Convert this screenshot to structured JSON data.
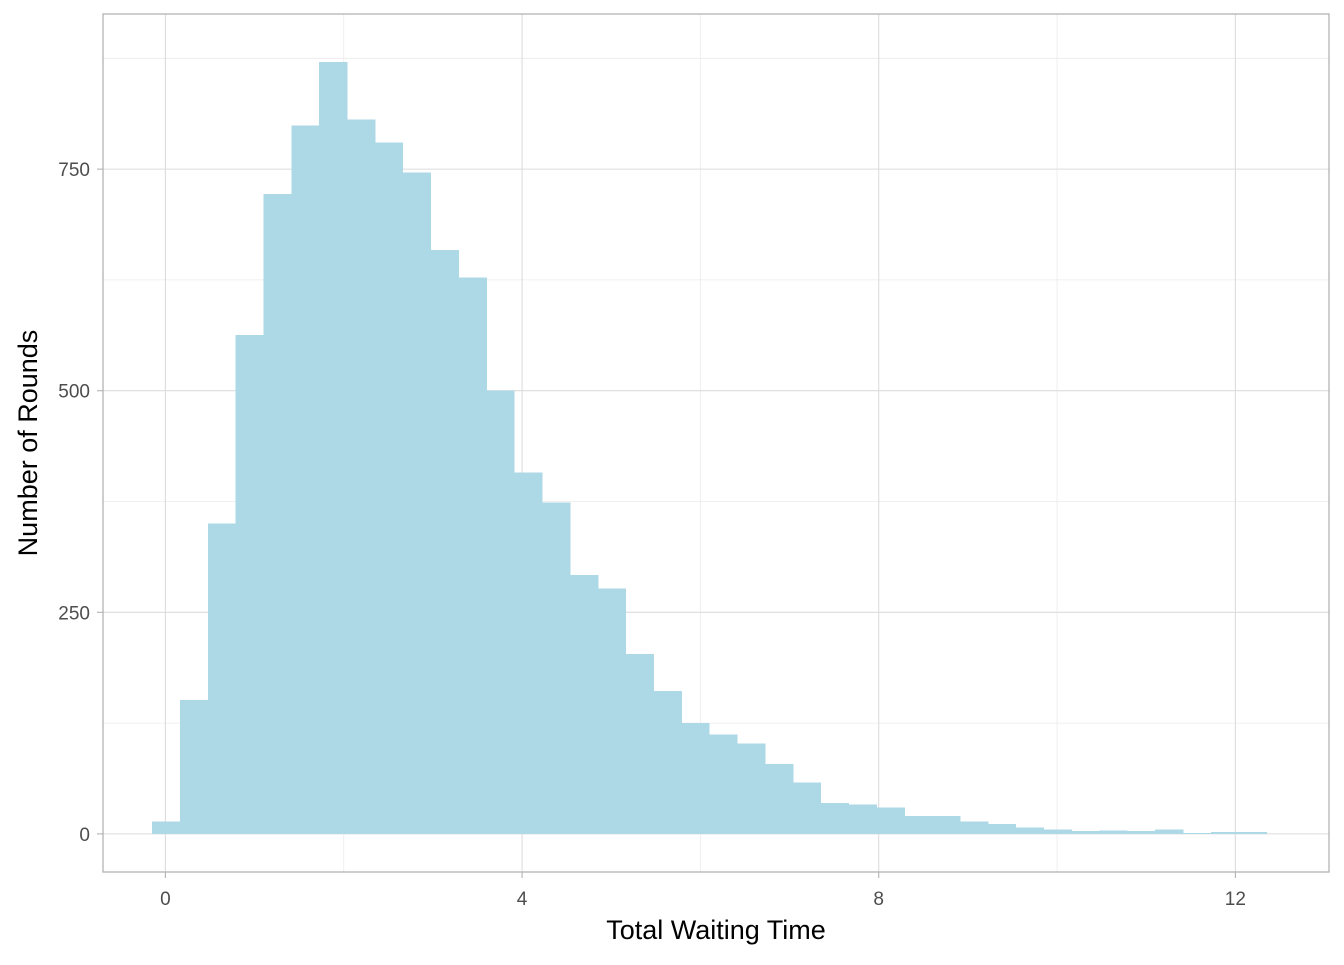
{
  "chart_data": {
    "type": "bar",
    "subtype": "histogram",
    "title": "",
    "xlabel": "Total Waiting Time",
    "ylabel": "Number of Rounds",
    "bin_width": 0.3125,
    "bin_start": -0.15,
    "values": [
      14,
      151,
      350,
      563,
      722,
      799,
      871,
      806,
      780,
      746,
      659,
      628,
      500,
      408,
      374,
      292,
      277,
      203,
      161,
      125,
      112,
      102,
      79,
      58,
      35,
      33,
      30,
      20,
      20,
      14,
      11,
      7,
      5,
      3,
      4,
      3,
      5,
      1,
      2,
      2
    ],
    "xlim": [
      -0.7,
      13.05
    ],
    "ylim": [
      -43,
      925
    ],
    "x_ticks": [
      0,
      4,
      8,
      12
    ],
    "x_tick_labels": [
      "0",
      "4",
      "8",
      "12"
    ],
    "y_ticks": [
      0,
      250,
      500,
      750
    ],
    "y_tick_labels": [
      "0",
      "250",
      "500",
      "750"
    ],
    "bar_color": "#add8e6",
    "grid": true,
    "legend": "none"
  }
}
